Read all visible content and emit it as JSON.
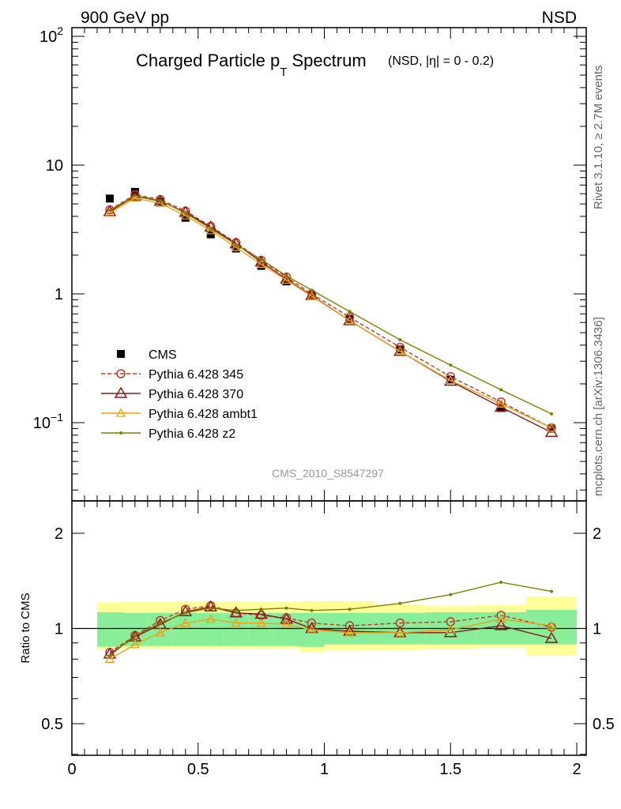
{
  "header": {
    "left": "900 GeV pp",
    "right": "NSD"
  },
  "side_labels": {
    "rivet": "Rivet 3.1.10, ≥ 2.7M events",
    "mcplots": "mcplots.cern.ch [arXiv:1306.3436]"
  },
  "chart_data": [
    {
      "type": "line",
      "title": "Charged Particle p",
      "title_subscript": "T",
      "title_tail": " Spectrum",
      "title_suffix": "(NSD, |η| =   0 - 0.2)",
      "watermark": "CMS_2010_S8547297",
      "xlim": [
        0,
        2
      ],
      "ylim": [
        0.025,
        120
      ],
      "yscale": "log",
      "ytick_labels": [
        {
          "value": 100,
          "label": "10",
          "exp": "2"
        },
        {
          "value": 10,
          "label": "10",
          "exp": ""
        },
        {
          "value": 1,
          "label": "1",
          "exp": ""
        },
        {
          "value": 0.1,
          "label": "10",
          "exp": "−1"
        }
      ],
      "legend_position": "lower-left",
      "x": [
        0.15,
        0.25,
        0.35,
        0.45,
        0.55,
        0.65,
        0.75,
        0.85,
        0.95,
        1.1,
        1.3,
        1.5,
        1.7,
        1.9
      ],
      "series": [
        {
          "name": "CMS",
          "color": "#000000",
          "style": "points",
          "marker": "square",
          "values": [
            5.5,
            6.2,
            5.2,
            3.9,
            2.9,
            2.25,
            1.65,
            1.25,
            0.98,
            0.64,
            0.37,
            0.215,
            0.13,
            0.09
          ]
        },
        {
          "name": "Pythia 6.428 345",
          "color": "#c0392b",
          "style": "dashed",
          "marker": "circle",
          "values": [
            4.5,
            5.9,
            5.4,
            4.4,
            3.35,
            2.5,
            1.82,
            1.35,
            1.0,
            0.66,
            0.385,
            0.228,
            0.145,
            0.091
          ]
        },
        {
          "name": "Pythia 6.428 370",
          "color": "#8b1a1a",
          "style": "solid",
          "marker": "triangle",
          "values": [
            4.35,
            5.75,
            5.25,
            4.3,
            3.3,
            2.45,
            1.77,
            1.3,
            0.97,
            0.62,
            0.358,
            0.21,
            0.132,
            0.084
          ]
        },
        {
          "name": "Pythia 6.428 ambt1",
          "color": "#e8a317",
          "style": "solid",
          "marker": "triangle-small",
          "values": [
            4.25,
            5.55,
            5.05,
            4.05,
            3.1,
            2.3,
            1.7,
            1.28,
            0.96,
            0.62,
            0.358,
            0.213,
            0.14,
            0.091
          ]
        },
        {
          "name": "Pythia 6.428 z2",
          "color": "#808000",
          "style": "solid",
          "marker": "dot",
          "values": [
            4.45,
            5.8,
            5.3,
            4.25,
            3.2,
            2.42,
            1.85,
            1.38,
            1.07,
            0.73,
            0.44,
            0.28,
            0.18,
            0.117
          ]
        }
      ]
    },
    {
      "type": "line",
      "ylabel": "Ratio to CMS",
      "xlim": [
        0,
        2
      ],
      "ylim": [
        0.333,
        2.3
      ],
      "yscale": "log",
      "ytick_labels": [
        "0.5",
        "1",
        "2"
      ],
      "xtick_labels": [
        "0",
        "0.5",
        "1",
        "1.5",
        "2"
      ],
      "x": [
        0.15,
        0.25,
        0.35,
        0.45,
        0.55,
        0.65,
        0.75,
        0.85,
        0.95,
        1.1,
        1.3,
        1.5,
        1.7,
        1.9
      ],
      "bin_edges": [
        0.1,
        0.2,
        0.3,
        0.4,
        0.5,
        0.6,
        0.7,
        0.8,
        0.9,
        1.0,
        1.2,
        1.4,
        1.6,
        1.8,
        2.0
      ],
      "band_inner": [
        [
          0.875,
          1.125
        ],
        [
          0.88,
          1.12
        ],
        [
          0.88,
          1.12
        ],
        [
          0.88,
          1.12
        ],
        [
          0.88,
          1.12
        ],
        [
          0.88,
          1.12
        ],
        [
          0.88,
          1.12
        ],
        [
          0.88,
          1.12
        ],
        [
          0.875,
          1.12
        ],
        [
          0.89,
          1.12
        ],
        [
          0.89,
          1.12
        ],
        [
          0.89,
          1.125
        ],
        [
          0.89,
          1.125
        ],
        [
          0.89,
          1.145
        ]
      ],
      "band_outer": [
        [
          0.86,
          1.21
        ],
        [
          0.865,
          1.215
        ],
        [
          0.865,
          1.215
        ],
        [
          0.865,
          1.215
        ],
        [
          0.865,
          1.215
        ],
        [
          0.865,
          1.215
        ],
        [
          0.865,
          1.215
        ],
        [
          0.865,
          1.215
        ],
        [
          0.84,
          1.22
        ],
        [
          0.85,
          1.22
        ],
        [
          0.855,
          1.19
        ],
        [
          0.86,
          1.18
        ],
        [
          0.87,
          1.19
        ],
        [
          0.82,
          1.26
        ]
      ],
      "series": [
        {
          "name": "Pythia 6.428 345",
          "color": "#c0392b",
          "style": "dashed",
          "marker": "circle",
          "values": [
            0.84,
            0.95,
            1.06,
            1.15,
            1.18,
            1.12,
            1.1,
            1.08,
            1.04,
            1.02,
            1.04,
            1.05,
            1.1,
            1.01
          ]
        },
        {
          "name": "Pythia 6.428 370",
          "color": "#8b1a1a",
          "style": "solid",
          "marker": "triangle",
          "values": [
            0.83,
            0.94,
            1.03,
            1.13,
            1.17,
            1.12,
            1.11,
            1.07,
            1.0,
            0.98,
            0.97,
            0.97,
            1.02,
            0.93
          ]
        },
        {
          "name": "Pythia 6.428 ambt1",
          "color": "#e8a317",
          "style": "solid",
          "marker": "triangle-small",
          "values": [
            0.8,
            0.89,
            0.97,
            1.04,
            1.07,
            1.04,
            1.04,
            1.03,
            0.99,
            0.97,
            0.97,
            0.99,
            1.07,
            1.02
          ]
        },
        {
          "name": "Pythia 6.428 z2",
          "color": "#808000",
          "style": "solid",
          "marker": "dot",
          "values": [
            0.82,
            0.95,
            1.04,
            1.12,
            1.16,
            1.14,
            1.15,
            1.16,
            1.14,
            1.15,
            1.2,
            1.28,
            1.4,
            1.31
          ]
        }
      ]
    }
  ]
}
